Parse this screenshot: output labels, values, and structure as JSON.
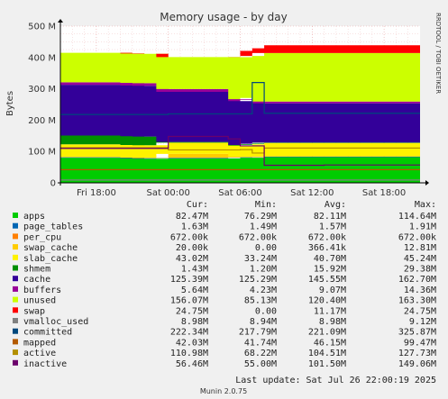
{
  "chart_data": {
    "type": "area",
    "title": "Memory usage - by day",
    "ylabel": "Bytes",
    "side_label": "RRDTOOL / TOBI OETIKER",
    "ylim": [
      0,
      500000000
    ],
    "y_ticks": [
      "0",
      "100 M",
      "200 M",
      "300 M",
      "400 M",
      "500 M"
    ],
    "y_tick_values": [
      0,
      100000000,
      200000000,
      300000000,
      400000000,
      500000000
    ],
    "x_range": [
      0,
      30
    ],
    "x_ticks": [
      "Fri 18:00",
      "Sat 00:00",
      "Sat 06:00",
      "Sat 12:00",
      "Sat 18:00"
    ],
    "x_tick_values": [
      3,
      9,
      15,
      21,
      27
    ],
    "x": [
      0,
      1,
      2,
      3,
      4,
      5,
      6,
      7,
      8,
      9,
      10,
      11,
      12,
      13,
      14,
      15,
      16,
      17,
      18,
      19,
      20,
      21,
      22,
      23,
      24,
      25,
      26,
      27,
      28,
      29,
      30
    ],
    "stacked": true,
    "series": [
      {
        "name": "apps",
        "color": "#00cc00",
        "values": [
          80,
          80,
          80,
          80,
          80,
          80,
          78,
          77,
          77,
          78,
          78,
          78,
          78,
          78,
          78,
          80,
          80,
          82,
          82,
          82,
          82,
          82,
          82,
          82,
          82,
          82,
          82,
          82,
          82,
          82,
          82
        ]
      },
      {
        "name": "page_tables",
        "color": "#0066b3",
        "values": [
          1.6,
          1.6,
          1.6,
          1.6,
          1.6,
          1.6,
          1.6,
          1.6,
          1.6,
          1.6,
          1.6,
          1.6,
          1.6,
          1.6,
          1.6,
          1.6,
          1.6,
          1.6,
          1.6,
          1.6,
          1.6,
          1.6,
          1.6,
          1.6,
          1.6,
          1.6,
          1.6,
          1.6,
          1.6,
          1.6,
          1.6
        ]
      },
      {
        "name": "per_cpu",
        "color": "#ff8000",
        "values": [
          0.7,
          0.7,
          0.7,
          0.7,
          0.7,
          0.7,
          0.7,
          0.7,
          0.7,
          0.7,
          0.7,
          0.7,
          0.7,
          0.7,
          0.7,
          0.7,
          0.7,
          0.7,
          0.7,
          0.7,
          0.7,
          0.7,
          0.7,
          0.7,
          0.7,
          0.7,
          0.7,
          0.7,
          0.7,
          0.7,
          0.7
        ]
      },
      {
        "name": "swap_cache",
        "color": "#ffcc00",
        "values": [
          0.5,
          0.5,
          0.5,
          0.5,
          0.5,
          0.5,
          0.5,
          0.5,
          0.5,
          12,
          12,
          12,
          12,
          12,
          12,
          0.5,
          0.5,
          0.02,
          0.02,
          0.02,
          0.02,
          0.02,
          0.02,
          0.02,
          0.02,
          0.02,
          0.02,
          0.02,
          0.02,
          0.02,
          0.02
        ]
      },
      {
        "name": "slab_cache",
        "color": "#fff200",
        "values": [
          40,
          40,
          40,
          40,
          40,
          40,
          40,
          40,
          40,
          36,
          36,
          36,
          36,
          36,
          36,
          36,
          40,
          43,
          43,
          43,
          43,
          43,
          43,
          43,
          43,
          43,
          43,
          43,
          43,
          43,
          43
        ]
      },
      {
        "name": "shmem",
        "color": "#008f00",
        "values": [
          28,
          28,
          28,
          28,
          28,
          28,
          28,
          28,
          28,
          2,
          2,
          2,
          2,
          2,
          2,
          2,
          2,
          1.4,
          1.4,
          1.4,
          1.4,
          1.4,
          1.4,
          1.4,
          1.4,
          1.4,
          1.4,
          1.4,
          1.4,
          1.4,
          1.4
        ]
      },
      {
        "name": "cache",
        "color": "#330099",
        "values": [
          162,
          162,
          162,
          162,
          162,
          162,
          162,
          162,
          162,
          160,
          160,
          160,
          160,
          160,
          160,
          140,
          140,
          125,
          125,
          125,
          125,
          125,
          125,
          125,
          125,
          125,
          125,
          125,
          125,
          125,
          125
        ]
      },
      {
        "name": "buffers",
        "color": "#990099",
        "values": [
          8,
          8,
          8,
          8,
          8,
          8,
          8,
          8,
          8,
          9,
          9,
          9,
          9,
          9,
          9,
          6,
          6,
          5.6,
          5.6,
          5.6,
          5.6,
          5.6,
          5.6,
          5.6,
          5.6,
          5.6,
          5.6,
          5.6,
          5.6,
          5.6,
          5.6
        ]
      },
      {
        "name": "unused",
        "color": "#ccff00",
        "values": [
          94,
          94,
          94,
          94,
          94,
          94,
          94,
          94,
          94,
          102,
          102,
          102,
          102,
          102,
          102,
          134,
          134,
          155,
          155,
          155,
          155,
          155,
          155,
          155,
          155,
          155,
          155,
          155,
          155,
          155,
          155
        ]
      },
      {
        "name": "swap",
        "color": "#ff0000",
        "values": [
          0,
          0,
          0,
          0,
          0,
          0,
          0,
          0,
          0,
          0,
          0,
          0,
          0,
          0,
          0,
          20,
          24.5,
          24.7,
          24.7,
          24.7,
          24.7,
          24.7,
          24.7,
          24.7,
          24.7,
          24.7,
          24.7,
          24.7,
          24.7,
          24.7,
          24.7
        ]
      }
    ],
    "line_series": [
      {
        "name": "vmalloc_used",
        "color": "#808080",
        "values": [
          9,
          9,
          9,
          9,
          9,
          9,
          9,
          9,
          9,
          9,
          9,
          9,
          9,
          9,
          9,
          9,
          9,
          9,
          9,
          9,
          9,
          9,
          9,
          9,
          9,
          9,
          9,
          9,
          9,
          9,
          9
        ]
      },
      {
        "name": "committed",
        "color": "#00487d",
        "values": [
          218,
          218,
          218,
          218,
          218,
          218,
          218,
          218,
          218,
          220,
          220,
          220,
          220,
          220,
          220,
          220,
          320,
          222,
          222,
          222,
          222,
          222,
          222,
          222,
          222,
          222,
          222,
          222,
          222,
          222,
          222
        ]
      },
      {
        "name": "mapped",
        "color": "#b35a00",
        "values": [
          42,
          42,
          42,
          42,
          42,
          42,
          42,
          42,
          42,
          42,
          42,
          42,
          42,
          42,
          42,
          42,
          42,
          42,
          42,
          42,
          42,
          42,
          42,
          42,
          42,
          42,
          42,
          42,
          42,
          42,
          42
        ]
      },
      {
        "name": "active",
        "color": "#b38f00",
        "values": [
          112,
          112,
          112,
          112,
          112,
          112,
          112,
          112,
          112,
          105,
          105,
          105,
          105,
          105,
          105,
          106,
          95,
          111,
          111,
          111,
          111,
          111,
          111,
          111,
          111,
          111,
          111,
          111,
          111,
          111,
          111
        ]
      },
      {
        "name": "inactive",
        "color": "#6b006b",
        "values": [
          110,
          110,
          110,
          110,
          110,
          110,
          110,
          110,
          110,
          148,
          148,
          148,
          148,
          148,
          140,
          118,
          118,
          56,
          56,
          56,
          56,
          56,
          57,
          57,
          57,
          57,
          57,
          57,
          57,
          57,
          57
        ]
      }
    ],
    "legend_header": {
      "cur": "Cur:",
      "min": "Min:",
      "avg": "Avg:",
      "max": "Max:"
    },
    "legend": [
      {
        "name": "apps",
        "color": "#00cc00",
        "cur": "82.47M",
        "min": "76.29M",
        "avg": "82.11M",
        "max": "114.64M"
      },
      {
        "name": "page_tables",
        "color": "#0066b3",
        "cur": "1.63M",
        "min": "1.49M",
        "avg": "1.57M",
        "max": "1.91M"
      },
      {
        "name": "per_cpu",
        "color": "#ff8000",
        "cur": "672.00k",
        "min": "672.00k",
        "avg": "672.00k",
        "max": "672.00k"
      },
      {
        "name": "swap_cache",
        "color": "#ffcc00",
        "cur": "20.00k",
        "min": "0.00",
        "avg": "366.41k",
        "max": "12.81M"
      },
      {
        "name": "slab_cache",
        "color": "#fff200",
        "cur": "43.02M",
        "min": "33.24M",
        "avg": "40.70M",
        "max": "45.24M"
      },
      {
        "name": "shmem",
        "color": "#008f00",
        "cur": "1.43M",
        "min": "1.20M",
        "avg": "15.92M",
        "max": "29.38M"
      },
      {
        "name": "cache",
        "color": "#330099",
        "cur": "125.39M",
        "min": "125.29M",
        "avg": "145.55M",
        "max": "162.70M"
      },
      {
        "name": "buffers",
        "color": "#990099",
        "cur": "5.64M",
        "min": "4.23M",
        "avg": "9.07M",
        "max": "14.36M"
      },
      {
        "name": "unused",
        "color": "#ccff00",
        "cur": "156.07M",
        "min": "85.13M",
        "avg": "120.40M",
        "max": "163.30M"
      },
      {
        "name": "swap",
        "color": "#ff0000",
        "cur": "24.75M",
        "min": "0.00",
        "avg": "11.17M",
        "max": "24.75M"
      },
      {
        "name": "vmalloc_used",
        "color": "#808080",
        "cur": "8.98M",
        "min": "8.94M",
        "avg": "8.98M",
        "max": "9.12M"
      },
      {
        "name": "committed",
        "color": "#00487d",
        "cur": "222.34M",
        "min": "217.79M",
        "avg": "221.09M",
        "max": "325.87M"
      },
      {
        "name": "mapped",
        "color": "#b35a00",
        "cur": "42.03M",
        "min": "41.74M",
        "avg": "46.15M",
        "max": "99.47M"
      },
      {
        "name": "active",
        "color": "#b38f00",
        "cur": "110.98M",
        "min": "68.22M",
        "avg": "104.51M",
        "max": "127.73M"
      },
      {
        "name": "inactive",
        "color": "#6b006b",
        "cur": "56.46M",
        "min": "55.00M",
        "avg": "101.50M",
        "max": "149.06M"
      }
    ],
    "last_update": "Last update: Sat Jul 26 22:00:19 2025",
    "footer": "Munin 2.0.75"
  }
}
